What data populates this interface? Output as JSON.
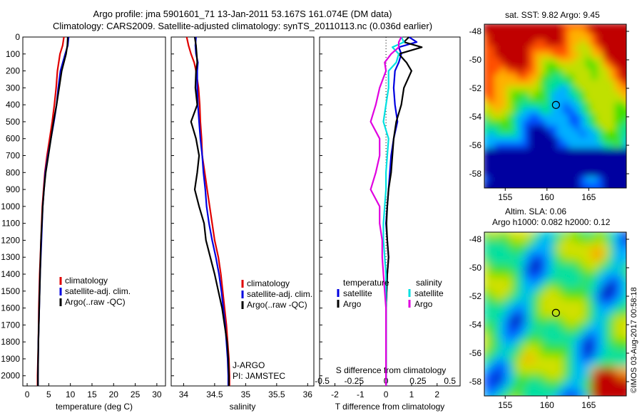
{
  "header": {
    "title_line1": "Argo profile: jma 5901601_71 13-Jan-2011 53.167S 161.074E (DM data)",
    "title_line2": "Climatology: CARS2009. Satellite-adjusted climatology: synTS_20110113.nc (0.036d earlier)"
  },
  "maps": {
    "sst_title": "sat. SST: 9.82 Argo: 9.45",
    "sla_title_line1": "Altim. SLA: 0.06",
    "sla_title_line2": "Argo h1000: 0.082 h2000: 0.12",
    "lat_ticks": [
      "-48",
      "-50",
      "-52",
      "-54",
      "-56",
      "-58"
    ],
    "lat_values": [
      -48,
      -50,
      -52,
      -54,
      -56,
      -58
    ],
    "lon_ticks": [
      "155",
      "160",
      "165"
    ],
    "lon_values": [
      155,
      160,
      165
    ],
    "lon_range": [
      152.5,
      169.5
    ],
    "lat_range": [
      -47.5,
      -59.0
    ],
    "argo_position": {
      "lon": 161.074,
      "lat": -53.167
    },
    "sst_colors": [
      "#0000a0",
      "#0050ff",
      "#00b0ff",
      "#00e090",
      "#40e000",
      "#c0e000",
      "#ffb000",
      "#ff5000",
      "#c00000"
    ],
    "sla_colors": [
      "#0000a0",
      "#0050ff",
      "#00b0ff",
      "#00e0a0",
      "#40e000",
      "#d0e000",
      "#ffa000",
      "#c00000"
    ]
  },
  "stamp": "©IMOS 03-Aug-2017 00:58:18",
  "legend": {
    "climatology": "climatology",
    "satellite_adj": "satellite-adj. clim.",
    "argo": "Argo(..raw -QC)",
    "temperature_header": "temperature",
    "salinity_header": "salinity",
    "satellite": "satellite",
    "argo_short": "Argo",
    "jargo": "J-ARGO",
    "pi": "PI: JAMSTEC"
  },
  "colors": {
    "climatology": "#e00000",
    "satellite": "#0000e0",
    "argo": "#000000",
    "s_satellite": "#00e0e0",
    "s_argo": "#e000e0"
  },
  "chart_data": [
    {
      "type": "line",
      "xlabel": "temperature (deg C)",
      "ylabel": "",
      "xlim": [
        -1,
        32
      ],
      "ylim": [
        2060,
        0
      ],
      "xticks": [
        0,
        5,
        10,
        15,
        20,
        25,
        30
      ],
      "yticks": [
        0,
        100,
        200,
        300,
        400,
        500,
        600,
        700,
        800,
        900,
        1000,
        1100,
        1200,
        1300,
        1400,
        1500,
        1600,
        1700,
        1800,
        1900,
        2000
      ],
      "y": [
        0,
        50,
        100,
        200,
        300,
        400,
        500,
        600,
        700,
        800,
        900,
        1000,
        1200,
        1400,
        1600,
        1800,
        2000,
        2060
      ],
      "series": [
        {
          "name": "climatology",
          "values": [
            8.5,
            8.2,
            7.6,
            7.0,
            6.7,
            6.3,
            5.8,
            5.2,
            4.6,
            4.1,
            3.8,
            3.5,
            3.2,
            2.9,
            2.7,
            2.6,
            2.4,
            2.4
          ]
        },
        {
          "name": "satellite-adj. clim.",
          "values": [
            9.6,
            9.4,
            8.8,
            7.7,
            7.2,
            6.8,
            6.2,
            5.5,
            4.8,
            4.2,
            3.9,
            3.6,
            3.3,
            3.0,
            2.8,
            2.6,
            2.5,
            2.5
          ]
        },
        {
          "name": "Argo(..raw -QC)",
          "values": [
            9.4,
            9.3,
            9.0,
            8.0,
            7.4,
            6.8,
            6.1,
            5.5,
            4.9,
            4.3,
            3.9,
            3.6,
            3.2,
            3.0,
            2.8,
            2.6,
            2.5,
            2.5
          ]
        }
      ]
    },
    {
      "type": "line",
      "xlabel": "salinity",
      "ylabel": "",
      "xlim": [
        33.8,
        36.1
      ],
      "ylim": [
        2060,
        0
      ],
      "xticks": [
        34,
        34.5,
        35,
        35.5,
        36
      ],
      "y": [
        0,
        50,
        100,
        150,
        200,
        300,
        400,
        500,
        600,
        700,
        800,
        900,
        1000,
        1100,
        1200,
        1300,
        1400,
        1500,
        1600,
        1700,
        1800,
        1900,
        2000,
        2060
      ],
      "series": [
        {
          "name": "climatology",
          "values": [
            34.05,
            34.08,
            34.12,
            34.17,
            34.2,
            34.24,
            34.26,
            34.27,
            34.29,
            34.3,
            34.34,
            34.38,
            34.42,
            34.46,
            34.5,
            34.56,
            34.6,
            34.63,
            34.66,
            34.69,
            34.71,
            34.73,
            34.74,
            34.74
          ]
        },
        {
          "name": "satellite-adj. clim.",
          "values": [
            34.2,
            34.19,
            34.2,
            34.23,
            34.22,
            34.22,
            34.23,
            34.25,
            34.27,
            34.3,
            34.32,
            34.35,
            34.37,
            34.41,
            34.46,
            34.52,
            34.57,
            34.61,
            34.64,
            34.67,
            34.69,
            34.71,
            34.72,
            34.72
          ]
        },
        {
          "name": "Argo(..raw -QC)",
          "values": [
            34.18,
            34.2,
            34.21,
            34.22,
            34.2,
            34.19,
            34.22,
            34.12,
            34.2,
            34.25,
            34.22,
            34.18,
            34.25,
            34.33,
            34.36,
            34.43,
            34.5,
            34.56,
            34.62,
            34.66,
            34.7,
            34.72,
            34.73,
            34.73
          ]
        }
      ]
    },
    {
      "type": "line",
      "xlabel": "T difference from climatology",
      "xlabel_top": "S difference from climatology",
      "xlim": [
        -2.6,
        2.9
      ],
      "ylim": [
        2060,
        0
      ],
      "xticks": [
        -2,
        -1,
        0,
        1,
        2
      ],
      "xtick_labels": [
        "-2",
        "-1",
        "0",
        "1",
        "2"
      ],
      "top_ticks": [
        -0.5,
        -0.25,
        0,
        0.25,
        0.5
      ],
      "top_tick_labels": [
        "-0.5",
        "-0.25",
        "0",
        "0.25",
        "0.5"
      ],
      "s_scale": 0.2,
      "y": [
        0,
        30,
        60,
        100,
        150,
        200,
        300,
        400,
        500,
        600,
        700,
        800,
        900,
        1000,
        1100,
        1200,
        1300,
        1400,
        1600,
        1800,
        2000,
        2060
      ],
      "series": [
        {
          "name": "temperature satellite",
          "values": [
            0.9,
            1.2,
            0.5,
            0.6,
            0.5,
            0.35,
            0.3,
            0.35,
            0.45,
            0.3,
            0.2,
            0.15,
            0.1,
            0.05,
            0.0,
            0.05,
            0.1,
            0.05,
            0.0,
            0.0,
            0.0,
            0.0
          ]
        },
        {
          "name": "temperature Argo",
          "values": [
            0.9,
            0.7,
            1.4,
            0.5,
            0.8,
            1.0,
            0.7,
            0.6,
            0.4,
            0.3,
            0.25,
            0.2,
            0.1,
            0.05,
            0.02,
            0.05,
            0.1,
            0.05,
            0.0,
            0.0,
            0.0,
            0.0
          ]
        },
        {
          "name": "salinity satellite",
          "values": [
            0.12,
            0.14,
            0.05,
            0.1,
            0.08,
            0.02,
            0.02,
            0.0,
            -0.02,
            0.02,
            0.01,
            0.0,
            0.0,
            -0.01,
            -0.02,
            -0.02,
            -0.01,
            0.0,
            0.0,
            0.0,
            0.0,
            0.0
          ]
        },
        {
          "name": "salinity Argo",
          "values": [
            0.12,
            0.1,
            0.1,
            0.04,
            -0.01,
            0.0,
            -0.05,
            -0.08,
            -0.12,
            -0.05,
            -0.05,
            -0.08,
            -0.12,
            -0.05,
            -0.05,
            -0.03,
            -0.03,
            -0.02,
            0.0,
            0.0,
            0.0,
            0.0
          ]
        }
      ]
    }
  ]
}
